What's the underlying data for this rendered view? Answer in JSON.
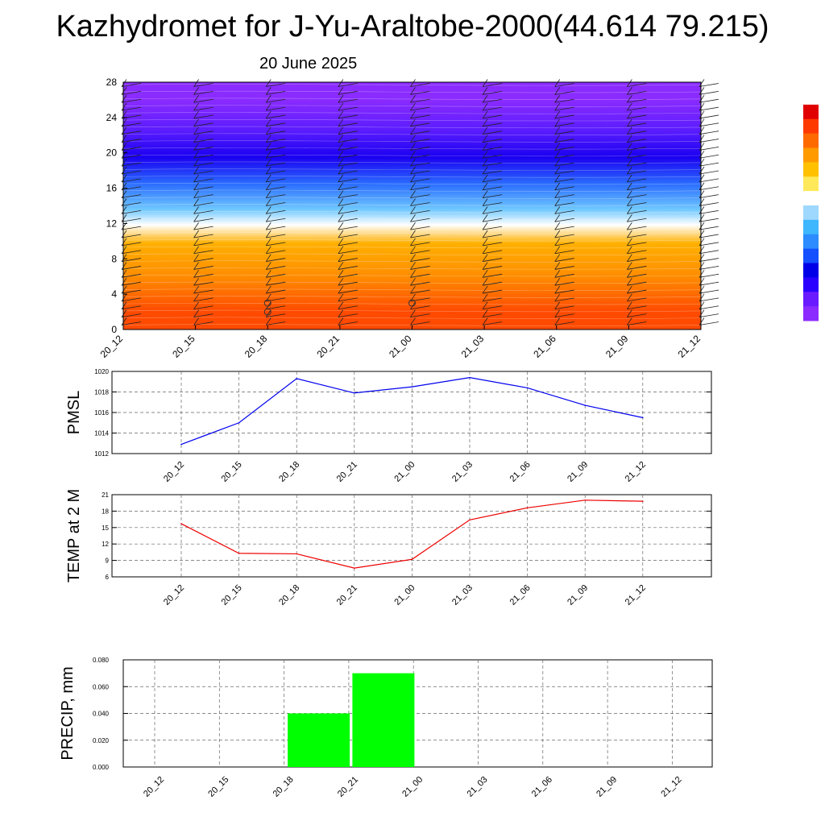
{
  "title": "Kazhydromet for J-Yu-Araltobe-2000(44.614 79.215)",
  "subtitle": "20 June 2025",
  "colors": {
    "pmsl_line": "#0000ee",
    "temp_line": "#ee0000",
    "precip_bar": "#00ff00",
    "colorbar": [
      "#8b2bff",
      "#6a1aff",
      "#2a00ff",
      "#0000e8",
      "#1450ff",
      "#2d8cff",
      "#3fb7ff",
      "#9ed8ff",
      "#ffffff",
      "#ffe95a",
      "#ffc000",
      "#ff9a00",
      "#ff6a00",
      "#ff3a00",
      "#e00000",
      "#ffffff"
    ]
  },
  "chart_data": [
    {
      "type": "heatmap",
      "title": "",
      "xlabel": "",
      "ylabel": "",
      "x_tick_labels": [
        "20_12",
        "20_15",
        "20_18",
        "20_21",
        "21_00",
        "21_03",
        "21_06",
        "21_09",
        "21_12"
      ],
      "y_ticks": [
        0,
        4,
        8,
        12,
        16,
        20,
        24,
        28
      ],
      "ylim": [
        0,
        28
      ],
      "bands": [
        {
          "from": 0,
          "to": 4,
          "color": "#ff4a00"
        },
        {
          "from": 4,
          "to": 8,
          "color": "#ff8c00"
        },
        {
          "from": 8,
          "to": 11.5,
          "color": "#ffb000"
        },
        {
          "from": 11.5,
          "to": 12.2,
          "color": "#ffffff"
        },
        {
          "from": 12.2,
          "to": 15,
          "color": "#6fc8ff"
        },
        {
          "from": 15,
          "to": 18,
          "color": "#2a6cff"
        },
        {
          "from": 18,
          "to": 21,
          "color": "#1a00f0"
        },
        {
          "from": 21,
          "to": 24,
          "color": "#5a1cff"
        },
        {
          "from": 24,
          "to": 28,
          "color": "#8a2bff"
        }
      ],
      "calm_markers": [
        {
          "x": "20_18",
          "levels": [
            2,
            3
          ]
        },
        {
          "x": "21_00",
          "levels": [
            3
          ]
        }
      ]
    },
    {
      "type": "line",
      "ylabel": "PMSL",
      "categories": [
        "20_12",
        "20_15",
        "20_18",
        "20_21",
        "21_00",
        "21_03",
        "21_06",
        "21_09",
        "21_12"
      ],
      "values": [
        1012.9,
        1015.0,
        1019.3,
        1017.9,
        1018.5,
        1019.4,
        1018.4,
        1016.7,
        1015.5
      ],
      "ylim": [
        1012,
        1020
      ],
      "y_ticks": [
        1012,
        1014,
        1016,
        1018,
        1020
      ],
      "grid": true
    },
    {
      "type": "line",
      "ylabel": "TEMP at 2 M",
      "categories": [
        "20_12",
        "20_15",
        "20_18",
        "20_21",
        "21_00",
        "21_03",
        "21_06",
        "21_09",
        "21_12"
      ],
      "values": [
        15.7,
        10.3,
        10.2,
        7.6,
        9.2,
        16.4,
        18.6,
        20.0,
        19.8
      ],
      "ylim": [
        6,
        21
      ],
      "y_ticks": [
        6,
        9,
        12,
        15,
        18,
        21
      ],
      "grid": true
    },
    {
      "type": "bar",
      "ylabel": "PRECIP, mm",
      "categories": [
        "20_12",
        "20_15",
        "20_18",
        "20_21",
        "21_00",
        "21_03",
        "21_06",
        "21_09",
        "21_12"
      ],
      "values": [
        0,
        0,
        0.04,
        0.07,
        0,
        0,
        0,
        0,
        0
      ],
      "ylim": [
        0,
        0.08
      ],
      "y_ticks": [
        "0.000",
        "0.020",
        "0.040",
        "0.060",
        "0.080"
      ],
      "grid": true
    }
  ]
}
